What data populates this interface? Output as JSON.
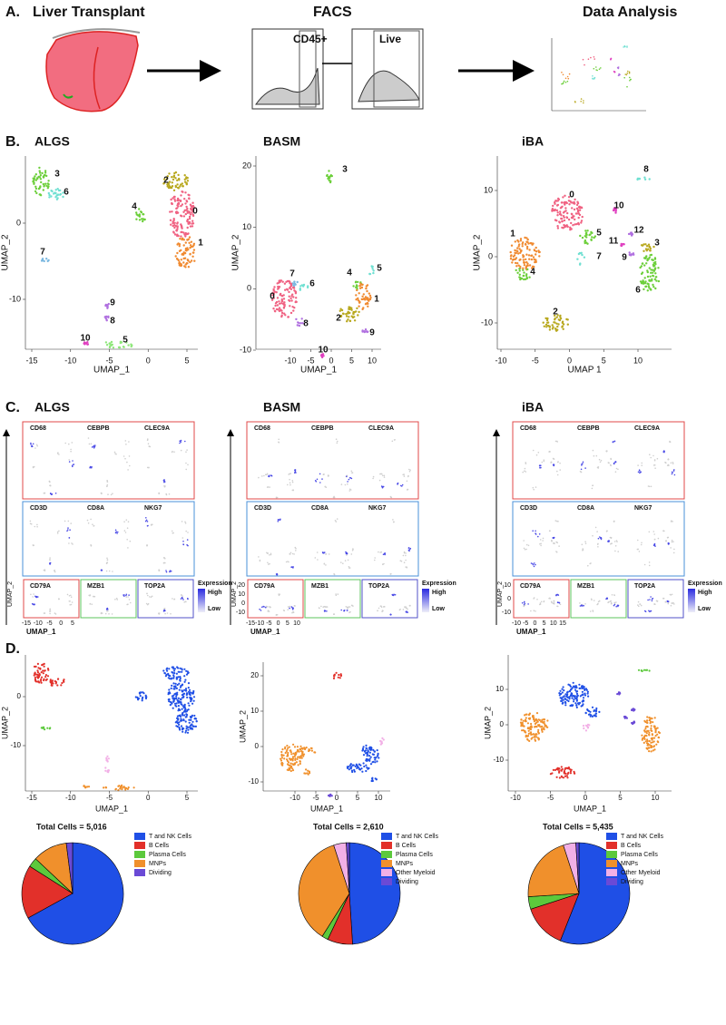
{
  "panel_a": {
    "label": "A.",
    "steps": [
      "Liver Transplant",
      "FACS",
      "Data Analysis"
    ],
    "gates": [
      "CD45+",
      "Live"
    ]
  },
  "panel_b": {
    "label": "B.",
    "plots": [
      {
        "title": "ALGS",
        "x_label": "UMAP_1",
        "y_label": "UMAP_2",
        "xticks": [
          "-15",
          "-10",
          "-5",
          "0",
          "5"
        ],
        "yticks": [
          "0",
          "-10"
        ],
        "clusters": [
          "3",
          "6",
          "2",
          "0",
          "4",
          "1",
          "7",
          "9",
          "8",
          "10",
          "5"
        ]
      },
      {
        "title": "BASM",
        "x_label": "UMAP_1",
        "y_label": "UMAP_2",
        "xticks": [
          "-10",
          "-5",
          "0",
          "5",
          "10"
        ],
        "yticks": [
          "20",
          "10",
          "0",
          "-10"
        ],
        "clusters": [
          "3",
          "7",
          "6",
          "0",
          "8",
          "10",
          "4",
          "5",
          "1",
          "2",
          "9"
        ]
      },
      {
        "title": "iBA",
        "x_label": "UMAP 1",
        "y_label": "UMAP_2",
        "xticks": [
          "-10",
          "-5",
          "0",
          "5",
          "10"
        ],
        "yticks": [
          "10",
          "0",
          "-10"
        ],
        "clusters": [
          "8",
          "10",
          "0",
          "5",
          "7",
          "1",
          "4",
          "12",
          "11",
          "9",
          "3",
          "6",
          "2"
        ]
      }
    ]
  },
  "panel_c": {
    "label": "C.",
    "plots": [
      {
        "title": "ALGS",
        "genes": [
          "CD68",
          "CEBPB",
          "CLEC9A",
          "CD3D",
          "CD8A",
          "NKG7",
          "CD79A",
          "MZB1",
          "TOP2A"
        ],
        "legend_title": "Expression",
        "legend_labels": [
          "High",
          "Low"
        ],
        "x_label": "UMAP_1",
        "y_label": "UMAP_2",
        "xticks": [
          "-15",
          "-10",
          "-5",
          "0",
          "5"
        ],
        "yticks": []
      },
      {
        "title": "BASM",
        "genes": [
          "CD68",
          "CEBPB",
          "CLEC9A",
          "CD3D",
          "CD8A",
          "NKG7",
          "CD79A",
          "MZB1",
          "TOP2A"
        ],
        "legend_title": "Expression",
        "legend_labels": [
          "High",
          "Low"
        ],
        "x_label": "UMAP_1",
        "y_label": "UMAP_2",
        "xticks": [
          "-15",
          "-10",
          "-5",
          "0",
          "5",
          "10"
        ],
        "yticks": [
          "20",
          "10",
          "0",
          "-10"
        ]
      },
      {
        "title": "iBA",
        "genes": [
          "CD68",
          "CEBPB",
          "CLEC9A",
          "CD3D",
          "CD8A",
          "NKG7",
          "CD79A",
          "MZB1",
          "TOP2A"
        ],
        "legend_title": "Expression",
        "legend_labels": [
          "High",
          "Low"
        ],
        "x_label": "UMAP_1",
        "y_label": "UMAP_2",
        "xticks": [
          "-10",
          "-5",
          "0",
          "5",
          "10",
          "15"
        ],
        "yticks": [
          "10",
          "0",
          "-10"
        ]
      }
    ]
  },
  "panel_d": {
    "label": "D.",
    "plots": [
      {
        "x_label": "UMAP_1",
        "y_label": "UMAP_2",
        "xticks": [
          "-15",
          "-10",
          "-5",
          "0",
          "5"
        ],
        "yticks": [
          "0",
          "-10"
        ],
        "pie": {
          "title": "Total Cells = 5,016",
          "categories": [
            "T and NK Cells",
            "B Cells",
            "Plasma Cells",
            "MNPs",
            "Dividing"
          ],
          "values": [
            67,
            17,
            3,
            11,
            2
          ],
          "colors": [
            "#1f4fe6",
            "#e2302a",
            "#5cc93c",
            "#f0902c",
            "#6a4ad6"
          ]
        }
      },
      {
        "x_label": "UMAP_1",
        "y_label": "UMAP_2",
        "xticks": [
          "-10",
          "-5",
          "0",
          "5",
          "10"
        ],
        "yticks": [
          "20",
          "10",
          "0",
          "-10"
        ],
        "pie": {
          "title": "Total Cells = 2,610",
          "categories": [
            "T and NK Cells",
            "B Cells",
            "Plasma Cells",
            "MNPs",
            "Other Myeloid",
            "Dividing"
          ],
          "values": [
            49,
            8,
            2,
            36,
            4,
            1
          ],
          "colors": [
            "#1f4fe6",
            "#e2302a",
            "#5cc93c",
            "#f0902c",
            "#f2b0e6",
            "#6a4ad6"
          ]
        }
      },
      {
        "x_label": "UMAP_1",
        "y_label": "UMAP_2",
        "xticks": [
          "-10",
          "-5",
          "0",
          "5",
          "10"
        ],
        "yticks": [
          "10",
          "0",
          "-10"
        ],
        "pie": {
          "title": "Total Cells = 5,435",
          "categories": [
            "T and NK Cells",
            "B Cells",
            "Plasma Cells",
            "MNPs",
            "Other Myeloid",
            "Dividing"
          ],
          "values": [
            56,
            14,
            4,
            21,
            4,
            1
          ],
          "colors": [
            "#1f4fe6",
            "#e2302a",
            "#5cc93c",
            "#f0902c",
            "#f2b0e6",
            "#6a4ad6"
          ]
        }
      }
    ]
  }
}
